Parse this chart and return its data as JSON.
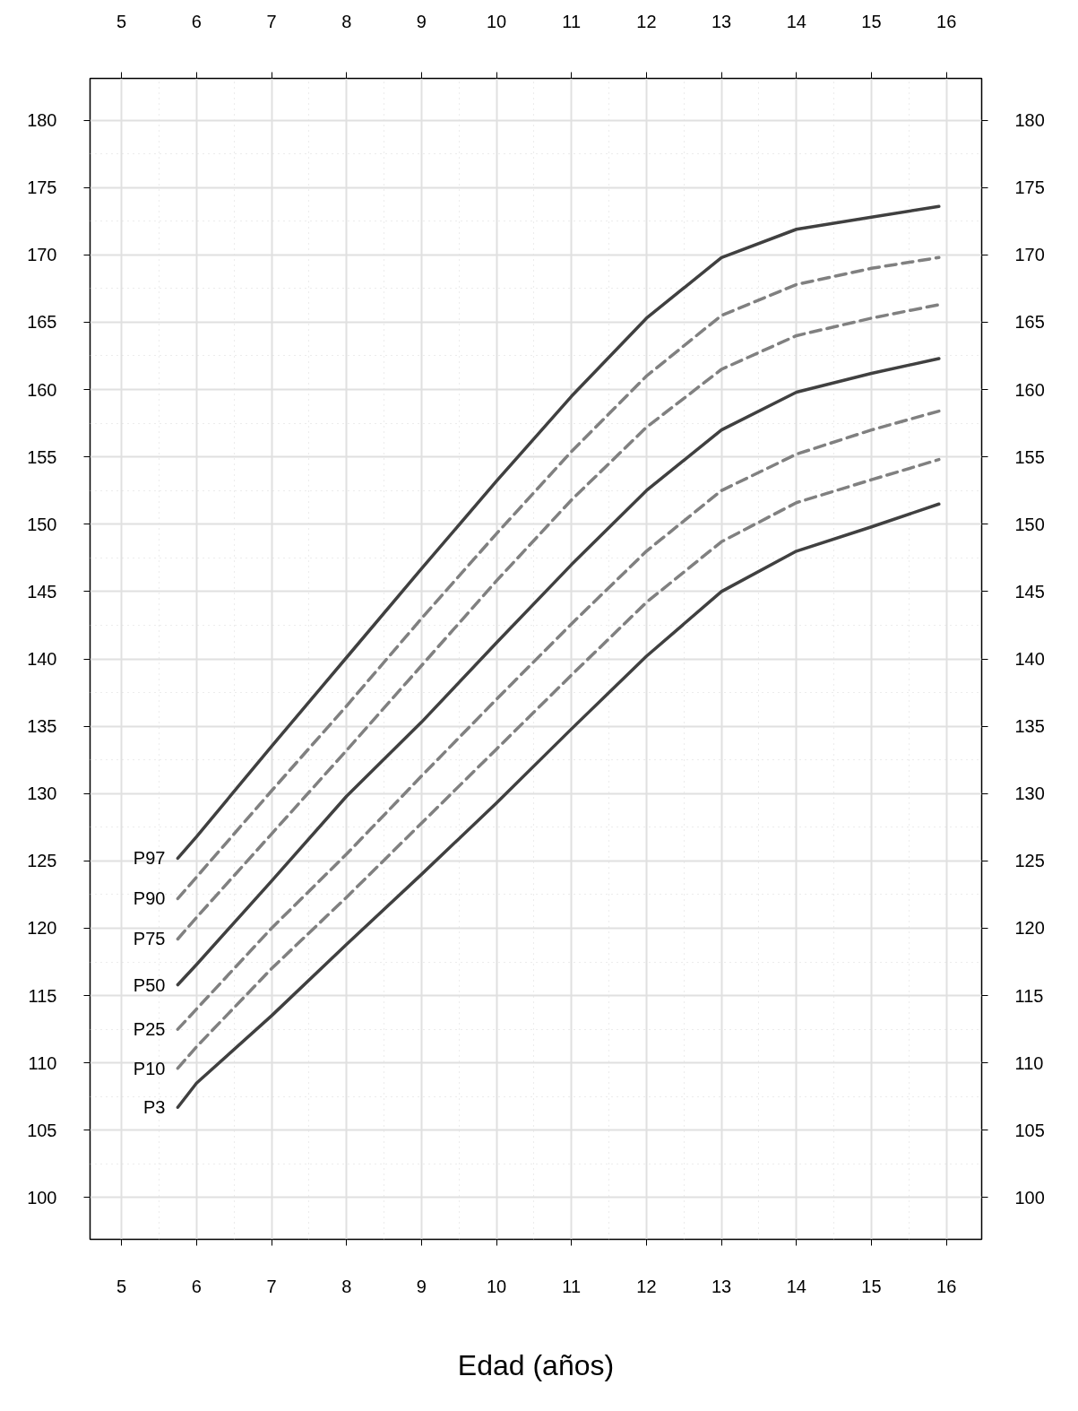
{
  "chart_data": {
    "type": "line",
    "xlabel": "Edad (años)",
    "xlim": [
      4.58,
      16.47
    ],
    "ylim": [
      96.9,
      183.1
    ],
    "x2lim": [
      4.58,
      16.47
    ],
    "y2lim": [
      96.9,
      183.1
    ],
    "xticks": [
      5,
      6,
      7,
      8,
      9,
      10,
      11,
      12,
      13,
      14,
      15,
      16
    ],
    "x2ticks": [
      5,
      6,
      7,
      8,
      9,
      10,
      11,
      12,
      13,
      14,
      15,
      16
    ],
    "yticks": [
      100,
      105,
      110,
      115,
      120,
      125,
      130,
      135,
      140,
      145,
      150,
      155,
      160,
      165,
      170,
      175,
      180
    ],
    "y2ticks": [
      100,
      105,
      110,
      115,
      120,
      125,
      130,
      135,
      140,
      145,
      150,
      155,
      160,
      165,
      170,
      175,
      180
    ],
    "grid": true,
    "x": [
      5.75,
      6,
      7,
      8,
      9,
      10,
      11,
      12,
      13,
      14,
      15,
      15.9
    ],
    "series": [
      {
        "name": "P97",
        "color": "#404040",
        "line_style": "solid",
        "values": [
          125.2,
          126.8,
          133.5,
          140.1,
          146.7,
          153.2,
          159.5,
          165.3,
          169.8,
          171.9,
          172.8,
          173.6
        ]
      },
      {
        "name": "P90",
        "color": "#808080",
        "line_style": "dashed",
        "values": [
          122.2,
          123.8,
          130.2,
          136.5,
          143,
          149.3,
          155.4,
          161,
          165.5,
          167.8,
          169,
          169.8
        ]
      },
      {
        "name": "P75",
        "color": "#808080",
        "line_style": "dashed",
        "values": [
          119.2,
          120.8,
          127,
          133.2,
          139.5,
          145.8,
          151.8,
          157.2,
          161.5,
          164,
          165.3,
          166.3
        ]
      },
      {
        "name": "P50",
        "color": "#404040",
        "line_style": "solid",
        "values": [
          115.8,
          117.3,
          123.5,
          129.8,
          135.3,
          141.2,
          147,
          152.5,
          157,
          159.8,
          161.2,
          162.3
        ]
      },
      {
        "name": "P25",
        "color": "#808080",
        "line_style": "dashed",
        "values": [
          112.5,
          114,
          120,
          125.5,
          131.3,
          137,
          142.6,
          148,
          152.5,
          155.2,
          157,
          158.4
        ]
      },
      {
        "name": "P10",
        "color": "#808080",
        "line_style": "dashed",
        "values": [
          109.6,
          111.2,
          117,
          122.3,
          127.8,
          133.3,
          138.8,
          144.2,
          148.7,
          151.6,
          153.3,
          154.8
        ]
      },
      {
        "name": "P3",
        "color": "#404040",
        "line_style": "solid",
        "values": [
          106.7,
          108.5,
          113.5,
          118.8,
          124,
          129.3,
          134.8,
          140.2,
          145,
          148,
          149.8,
          151.5
        ]
      }
    ]
  }
}
